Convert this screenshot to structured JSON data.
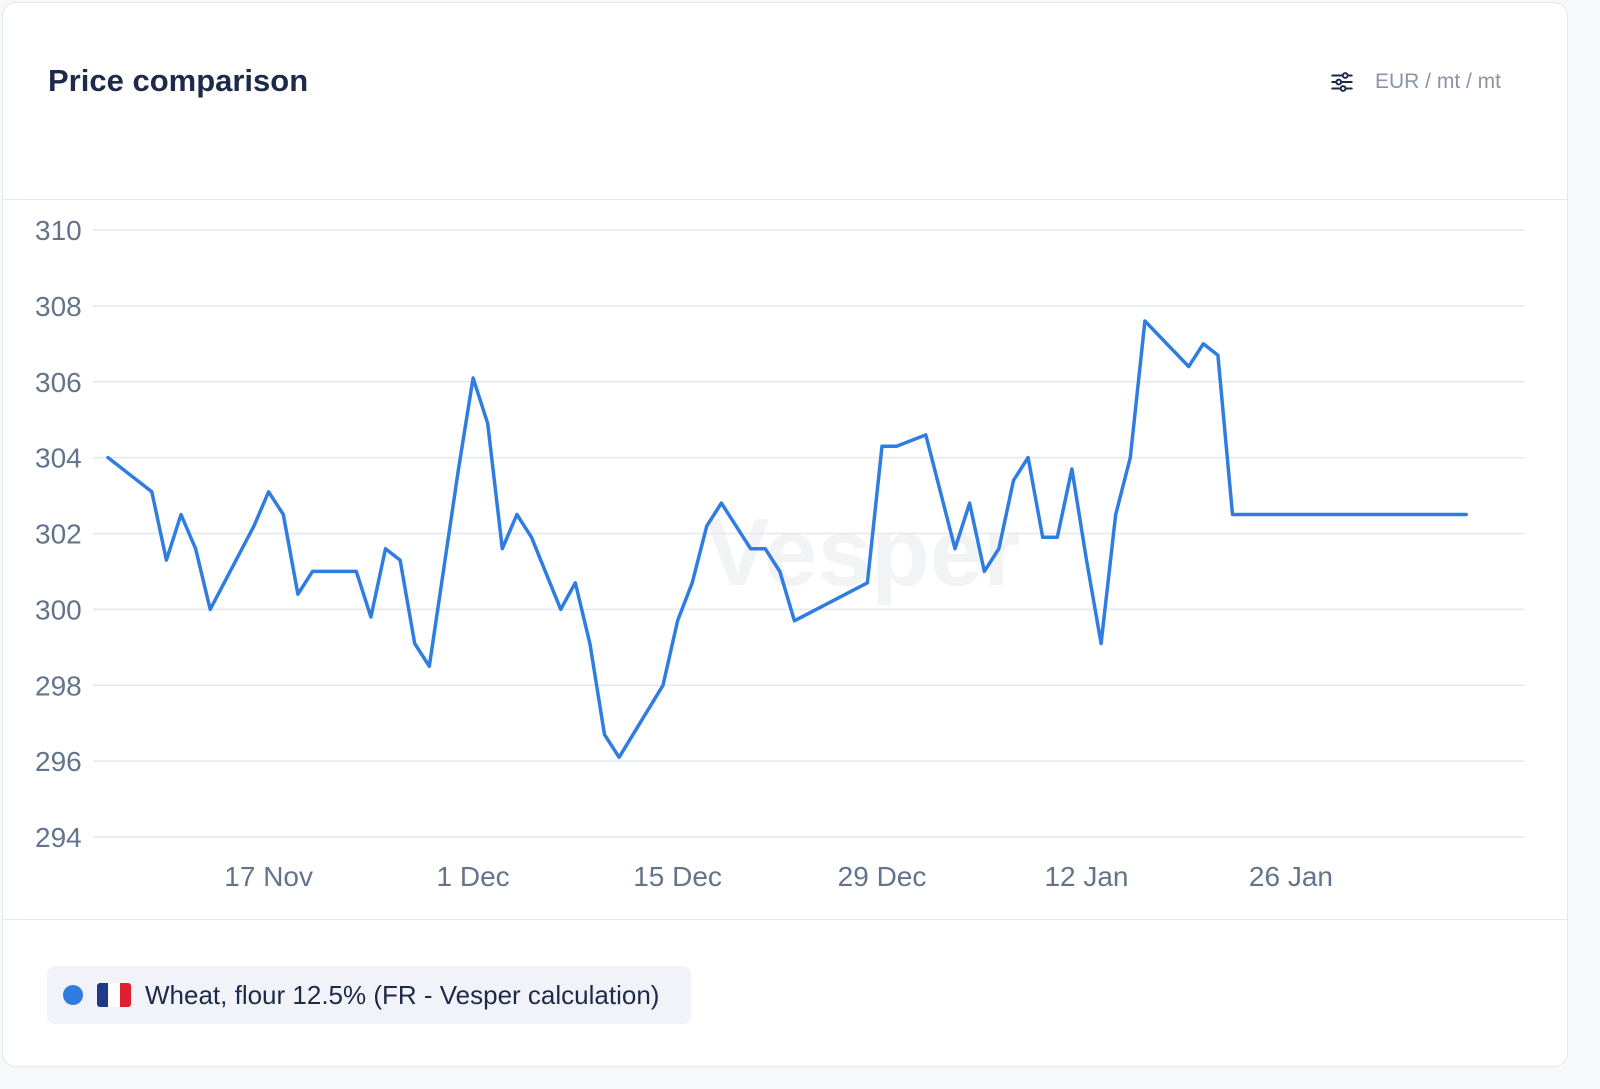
{
  "header": {
    "title": "Price comparison",
    "unit": "EUR / mt / mt",
    "settings_icon": "sliders-icon"
  },
  "watermark": "Vesper",
  "colors": {
    "series": "#2f7de1",
    "grid": "#e3e8ef",
    "axis_text": "#64748b",
    "flag_blue": "#1e3a8a",
    "flag_white": "#ffffff",
    "flag_red": "#e11d2e"
  },
  "legend": {
    "label": "Wheat, flour 12.5% (FR - Vesper calculation)",
    "flag_icon": "france-flag-icon"
  },
  "chart_data": {
    "type": "line",
    "ylim": [
      294,
      310
    ],
    "yticks": [
      294,
      296,
      298,
      300,
      302,
      304,
      306,
      308,
      310
    ],
    "x_tick_labels": [
      "17 Nov",
      "1 Dec",
      "15 Dec",
      "29 Dec",
      "12 Jan",
      "26 Jan"
    ],
    "x_tick_days": [
      14,
      28,
      42,
      56,
      70,
      84
    ],
    "x_range_days": [
      3,
      99
    ],
    "grid": true,
    "series": [
      {
        "name": "Wheat, flour 12.5% (FR - Vesper calculation)",
        "x_days": [
          3,
          6,
          7,
          8,
          9,
          10,
          13,
          14,
          15,
          16,
          17,
          18,
          20,
          21,
          22,
          23,
          24,
          25,
          27,
          28,
          29,
          30,
          31,
          32,
          34,
          35,
          36,
          37,
          38,
          41,
          42,
          43,
          44,
          45,
          47,
          48,
          49,
          50,
          55,
          56,
          57,
          59,
          61,
          62,
          63,
          64,
          65,
          66,
          67,
          68,
          69,
          70,
          71,
          72,
          73,
          74,
          77,
          78,
          79,
          80,
          81,
          82,
          83,
          84,
          85,
          86,
          87,
          88,
          93,
          94,
          95,
          96
        ],
        "values": [
          304.0,
          303.1,
          301.3,
          302.5,
          301.6,
          300.0,
          302.2,
          303.1,
          302.5,
          300.4,
          301.0,
          301.0,
          301.0,
          299.8,
          301.6,
          301.3,
          299.1,
          298.5,
          303.7,
          306.1,
          304.9,
          301.6,
          302.5,
          301.9,
          300.0,
          300.7,
          299.1,
          296.7,
          296.1,
          298.0,
          299.7,
          300.7,
          302.2,
          302.8,
          301.6,
          301.6,
          301.0,
          299.7,
          300.7,
          304.3,
          304.3,
          304.6,
          301.6,
          302.8,
          301.0,
          301.6,
          303.4,
          304.0,
          301.9,
          301.9,
          303.7,
          301.3,
          299.1,
          302.5,
          304.0,
          307.6,
          306.4,
          307.0,
          306.7,
          302.5,
          302.5,
          302.5,
          302.5,
          302.5,
          302.5,
          302.5,
          302.5,
          302.5,
          302.5,
          302.5,
          302.5,
          302.5
        ]
      }
    ]
  }
}
